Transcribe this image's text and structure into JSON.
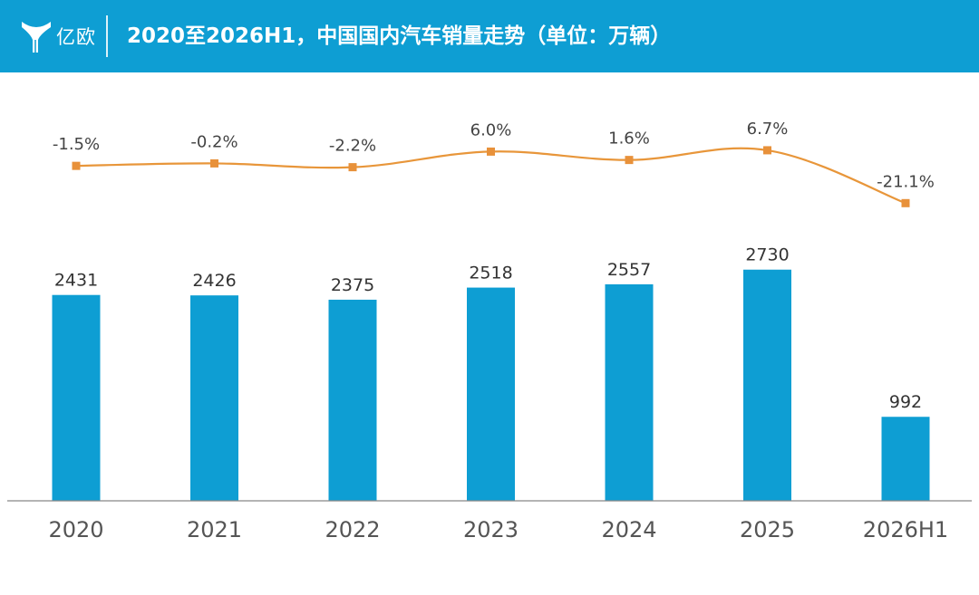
{
  "header": {
    "logo_text": "亿欧",
    "title": "2020至2026H1，中国国内汽车销量走势（单位：万辆）"
  },
  "colors": {
    "header_bg": "#0e9ed3",
    "bar": "#0e9ed3",
    "line": "#e8963a",
    "marker": "#e8913a",
    "axis": "#888888"
  },
  "chart_data": [
    {
      "type": "bar",
      "title": "2020至2026H1，中国国内汽车销量走势（单位：万辆）",
      "categories": [
        "2020",
        "2021",
        "2022",
        "2023",
        "2024",
        "2025",
        "2026H1"
      ],
      "series": [
        {
          "values": [
            2431,
            2426,
            2375,
            2518,
            2557,
            2730,
            992
          ]
        }
      ],
      "ylim": [
        0,
        2900
      ],
      "grid": false,
      "legend": "none"
    },
    {
      "type": "line",
      "categories": [
        "2020",
        "2021",
        "2022",
        "2023",
        "2024",
        "2025",
        "2026H1"
      ],
      "series": [
        {
          "values": [
            -1.5,
            -0.2,
            -2.2,
            6.0,
            1.6,
            6.7,
            -21.1
          ],
          "labels": [
            "-1.5%",
            "-0.2%",
            "-2.2%",
            "6.0%",
            "1.6%",
            "6.7%",
            "-21.1%"
          ]
        }
      ],
      "unit": "%",
      "grid": false,
      "legend": "none"
    }
  ]
}
